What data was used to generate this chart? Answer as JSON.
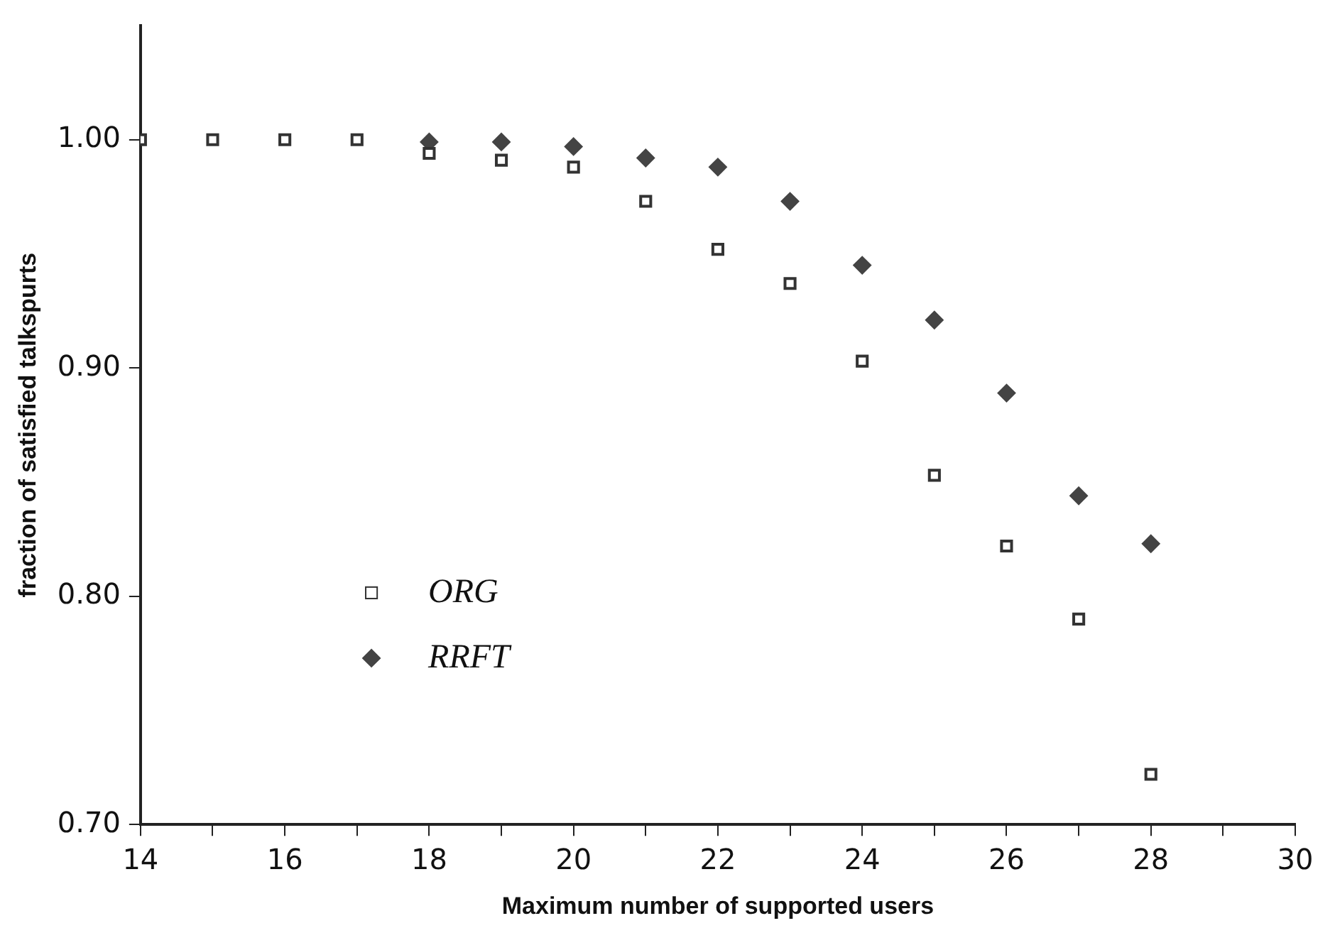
{
  "chart_data": {
    "type": "scatter",
    "xlabel": "Maximum number of supported users",
    "ylabel": "fraction of satisfied talkspurts",
    "x": [
      14,
      15,
      16,
      17,
      18,
      19,
      20,
      21,
      22,
      23,
      24,
      25,
      26,
      27,
      28
    ],
    "series": [
      {
        "name": "ORG",
        "color": "#333333",
        "marker": "square",
        "values": [
          1.0,
          1.0,
          1.0,
          1.0,
          0.994,
          0.991,
          0.988,
          0.973,
          0.952,
          0.937,
          0.903,
          0.853,
          0.822,
          0.79,
          0.722
        ]
      },
      {
        "name": "RRFT",
        "color": "#444444",
        "marker": "diamond",
        "values": [
          null,
          null,
          null,
          null,
          0.999,
          0.999,
          0.997,
          0.992,
          0.988,
          0.973,
          0.945,
          0.921,
          0.889,
          0.844,
          0.823
        ]
      }
    ],
    "xlim": [
      14,
      30
    ],
    "xticks": [
      14,
      {
        "value": 15,
        "label": null
      },
      16,
      {
        "value": 17,
        "label": null
      },
      18,
      {
        "value": 19,
        "label": null
      },
      20,
      {
        "value": 21,
        "label": null
      },
      22,
      {
        "value": 23,
        "label": null
      },
      24,
      {
        "value": 25,
        "label": null
      },
      26,
      {
        "value": 27,
        "label": null
      },
      28,
      {
        "value": 29,
        "label": null
      },
      30
    ],
    "ylim": [
      0.7,
      1.05
    ],
    "yticks": [
      {
        "value": 0.7,
        "label": "0.70"
      },
      {
        "value": 0.8,
        "label": "0.80"
      },
      {
        "value": 0.9,
        "label": "0.90"
      },
      {
        "value": 1.0,
        "label": "1.00"
      }
    ],
    "grid": false,
    "legend": "left"
  }
}
